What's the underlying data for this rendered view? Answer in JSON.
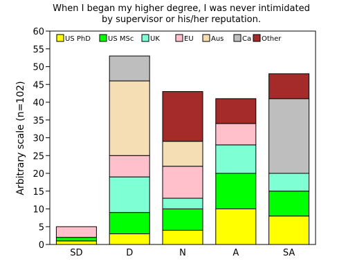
{
  "chart_data": {
    "type": "bar",
    "stacked": true,
    "title": "When I began my higher degree, I was never intimidated by supervisor or his/her reputation.",
    "title_lines": [
      "When I began my higher degree, I was never intimidated",
      "by supervisor or his/her reputation."
    ],
    "xlabel": "",
    "ylabel": "Arbitrary scale (n=102)",
    "ylim": [
      0,
      60
    ],
    "yticks": [
      0,
      5,
      10,
      15,
      20,
      25,
      30,
      35,
      40,
      45,
      50,
      55,
      60
    ],
    "categories": [
      "SD",
      "D",
      "N",
      "A",
      "SA"
    ],
    "legend_position": "top",
    "grid": false,
    "series": [
      {
        "name": "US PhD",
        "color": "#ffff00",
        "values": [
          1,
          3,
          4,
          10,
          8
        ]
      },
      {
        "name": "US MSc",
        "color": "#00ff00",
        "values": [
          1,
          6,
          6,
          10,
          7
        ]
      },
      {
        "name": "UK",
        "color": "#7fffd4",
        "values": [
          0,
          10,
          3,
          8,
          5
        ]
      },
      {
        "name": "EU",
        "color": "#ffc0cb",
        "values": [
          3,
          6,
          9,
          6,
          0
        ]
      },
      {
        "name": "Aus",
        "color": "#f5deb3",
        "values": [
          0,
          21,
          7,
          0,
          0
        ]
      },
      {
        "name": "Ca",
        "color": "#bebebe",
        "values": [
          0,
          7,
          0,
          0,
          21
        ]
      },
      {
        "name": "Other",
        "color": "#a52a2a",
        "values": [
          0,
          0,
          14,
          7,
          7
        ]
      }
    ]
  }
}
